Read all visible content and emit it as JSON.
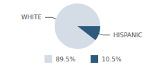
{
  "chart_data": {
    "type": "pie",
    "categories": [
      "WHITE",
      "HISPANIC"
    ],
    "values": [
      89.5,
      10.5
    ],
    "value_labels": [
      "89.5%",
      "10.5%"
    ],
    "colors": [
      "#d4dce6",
      "#2e5a7c"
    ],
    "legend": "bottom"
  }
}
